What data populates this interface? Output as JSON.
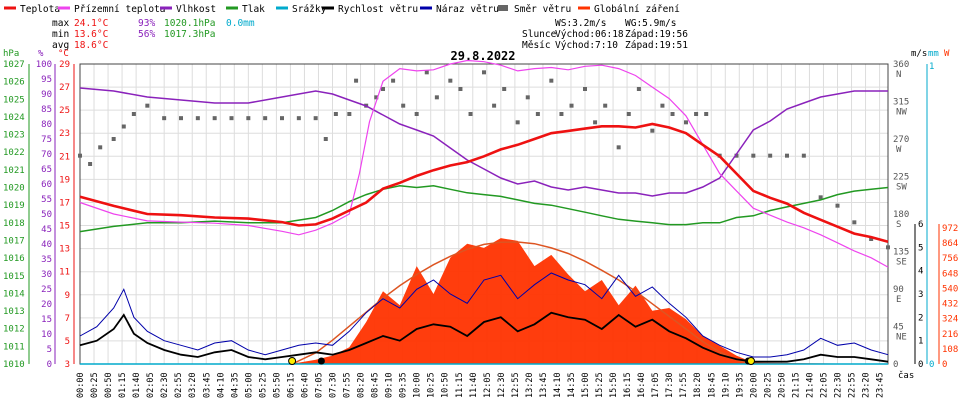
{
  "title": "29.8.2022",
  "legend": [
    {
      "label": "Teplota",
      "color": "#ee1111",
      "kind": "line"
    },
    {
      "label": "Přízemní teplota",
      "color": "#ee44ee",
      "kind": "line"
    },
    {
      "label": "Vlhkost",
      "color": "#8a22bb",
      "kind": "line"
    },
    {
      "label": "Tlak",
      "color": "#229922",
      "kind": "line"
    },
    {
      "label": "Srážky",
      "color": "#00aacc",
      "kind": "line"
    },
    {
      "label": "Rychlost větru",
      "color": "#000000",
      "kind": "line"
    },
    {
      "label": "Náraz větru",
      "color": "#0000aa",
      "kind": "line"
    },
    {
      "label": "Směr větru",
      "color": "#666666",
      "kind": "dot"
    },
    {
      "label": "Globální záření",
      "color": "#ff3300",
      "kind": "line"
    }
  ],
  "stats": {
    "max_label": "max",
    "max_temp": "24.1°C",
    "max_hum": "93%",
    "max_press": "1020.1hPa",
    "max_rain": "0.0mm",
    "min_label": "min",
    "min_temp": "13.6°C",
    "min_hum": "56%",
    "min_press": "1017.3hPa",
    "avg_label": "avg",
    "avg_temp": "18.6°C"
  },
  "info": {
    "ws": "WS:3.2m/s",
    "wg": "WG:5.9m/s",
    "sun_label": "Slunce",
    "sun_rise": "Východ:06:18",
    "sun_set": "Západ:19:56",
    "moon_label": "Měsíc",
    "moon_rise": "Východ:7:10",
    "moon_set": "Západ:19:51"
  },
  "axis_headers": {
    "hpa": "hPa",
    "pct": "%",
    "degc": "°C",
    "ms": "m/s",
    "mm": "mm",
    "w": "W",
    "time": "čas"
  },
  "colors": {
    "temp": "#ee1111",
    "ground": "#ee44ee",
    "humidity": "#8a22bb",
    "pressure": "#229922",
    "rain": "#00aacc",
    "wind": "#000000",
    "gust": "#0000aa",
    "dir": "#666666",
    "radiation": "#ff3300",
    "theoretical": "#dd5522",
    "grid": "#dddddd",
    "axis_press": "#229922",
    "axis_hum": "#8a22bb",
    "axis_temp": "#ee1111",
    "axis_wind": "#000000",
    "axis_rain": "#00aacc",
    "axis_rad": "#ff3300"
  },
  "chart_data": {
    "type": "line",
    "x_unit": "time",
    "x_ticks": [
      "00:00",
      "00:25",
      "00:50",
      "01:15",
      "01:40",
      "02:05",
      "02:30",
      "02:55",
      "03:20",
      "03:45",
      "04:10",
      "04:35",
      "05:00",
      "05:25",
      "05:50",
      "06:15",
      "06:40",
      "07:05",
      "07:30",
      "07:55",
      "08:20",
      "08:45",
      "09:10",
      "09:35",
      "10:00",
      "10:25",
      "10:50",
      "11:15",
      "11:40",
      "12:05",
      "12:30",
      "12:55",
      "13:20",
      "13:45",
      "14:10",
      "14:35",
      "15:00",
      "15:25",
      "15:50",
      "16:15",
      "16:40",
      "17:05",
      "17:30",
      "17:55",
      "18:20",
      "18:45",
      "19:10",
      "19:35",
      "20:00",
      "20:25",
      "20:50",
      "21:15",
      "21:40",
      "22:05",
      "22:30",
      "22:55",
      "23:20",
      "23:45"
    ],
    "axes": {
      "pressure": {
        "label": "hPa",
        "min": 1010,
        "max": 1027,
        "ticks": [
          1010,
          1011,
          1012,
          1013,
          1014,
          1015,
          1016,
          1017,
          1018,
          1019,
          1020,
          1021,
          1022,
          1023,
          1024,
          1025,
          1026,
          1027
        ]
      },
      "humidity": {
        "label": "%",
        "min": 0,
        "max": 100,
        "ticks": [
          0,
          5,
          10,
          15,
          20,
          25,
          30,
          35,
          40,
          45,
          50,
          55,
          60,
          65,
          70,
          75,
          80,
          85,
          90,
          95,
          100
        ]
      },
      "temperature": {
        "label": "°C",
        "min": 3,
        "max": 29,
        "ticks": [
          3,
          5,
          7,
          9,
          11,
          13,
          15,
          17,
          19,
          21,
          23,
          25,
          27,
          29
        ]
      },
      "wind_direction": {
        "ticks": [
          "360 N",
          "315 NW",
          "270 W",
          "225 SW",
          "180 S",
          "135 SE",
          "90 E",
          "45 NE",
          "0"
        ]
      },
      "wind_speed": {
        "label": "m/s",
        "min": 0,
        "max": 6,
        "ticks": [
          0,
          1,
          2,
          3,
          4,
          5,
          6
        ]
      },
      "rain": {
        "label": "mm",
        "ticks": [
          1,
          0
        ]
      },
      "radiation": {
        "label": "W",
        "min": 0,
        "max": 972,
        "ticks": [
          0,
          108,
          216,
          324,
          432,
          540,
          648,
          756,
          864,
          972
        ]
      }
    },
    "series": [
      {
        "name": "Teplota",
        "axis": "temperature",
        "x": [
          0,
          1,
          2,
          3,
          4,
          5,
          6,
          6.5,
          7,
          7.5,
          8,
          8.5,
          9,
          9.5,
          10,
          10.5,
          11,
          11.5,
          12,
          12.5,
          13,
          13.5,
          14,
          14.5,
          15,
          15.5,
          16,
          16.5,
          17,
          17.5,
          18,
          18.5,
          19,
          19.5,
          20,
          20.5,
          21,
          21.5,
          22,
          22.5,
          23,
          23.5,
          24
        ],
        "y": [
          17.5,
          16.7,
          16.0,
          15.9,
          15.7,
          15.6,
          15.3,
          15.0,
          15.1,
          15.6,
          16.3,
          17.0,
          18.2,
          18.7,
          19.3,
          19.8,
          20.2,
          20.5,
          21.0,
          21.6,
          22.0,
          22.5,
          23.0,
          23.2,
          23.4,
          23.6,
          23.6,
          23.5,
          23.8,
          23.5,
          23.0,
          22.0,
          21.0,
          19.5,
          18.0,
          17.4,
          16.9,
          16.1,
          15.5,
          14.9,
          14.3,
          14.0,
          13.6
        ]
      },
      {
        "name": "Přízemní teplota",
        "axis": "temperature",
        "x": [
          0,
          1,
          2,
          3,
          4,
          5,
          6,
          6.5,
          7,
          7.5,
          8,
          8.3,
          8.6,
          9,
          9.5,
          10,
          10.5,
          11,
          11.5,
          12,
          12.5,
          13,
          13.5,
          14,
          14.5,
          15,
          15.5,
          16,
          16.5,
          17,
          17.5,
          18,
          18.3,
          18.7,
          19,
          19.5,
          20,
          20.5,
          21,
          21.5,
          22,
          22.5,
          23,
          23.5,
          24
        ],
        "y": [
          17.0,
          16.0,
          15.4,
          15.3,
          15.2,
          15.0,
          14.5,
          14.2,
          14.6,
          15.2,
          16.0,
          19.5,
          24.0,
          27.5,
          28.6,
          28.4,
          28.5,
          29.0,
          29.3,
          29.2,
          28.9,
          28.4,
          28.6,
          28.7,
          28.5,
          28.8,
          28.9,
          28.6,
          28.0,
          27.0,
          26.0,
          24.5,
          23.0,
          21.0,
          19.5,
          18.0,
          16.5,
          15.9,
          15.3,
          14.8,
          14.2,
          13.5,
          12.8,
          12.2,
          11.4
        ]
      },
      {
        "name": "Vlhkost",
        "axis": "humidity",
        "x": [
          0,
          1,
          2,
          3,
          4,
          5,
          6,
          6.5,
          7,
          7.5,
          8,
          8.5,
          9,
          9.5,
          10,
          10.5,
          11,
          11.5,
          12,
          12.5,
          13,
          13.5,
          14,
          14.5,
          15,
          15.5,
          16,
          16.5,
          17,
          17.5,
          18,
          18.5,
          19,
          19.5,
          20,
          20.5,
          21,
          21.5,
          22,
          22.5,
          23,
          23.5,
          24
        ],
        "y": [
          92,
          91,
          89,
          88,
          87,
          87,
          89,
          90,
          91,
          90,
          88,
          86,
          83,
          80,
          78,
          76,
          72,
          68,
          65,
          62,
          60,
          61,
          59,
          58,
          59,
          58,
          57,
          57,
          56,
          57,
          57,
          59,
          62,
          70,
          78,
          81,
          85,
          87,
          89,
          90,
          91,
          91,
          91
        ]
      },
      {
        "name": "Tlak",
        "axis": "pressure",
        "x": [
          0,
          1,
          2,
          3,
          4,
          5,
          6,
          7,
          7.5,
          8,
          8.5,
          9,
          9.5,
          10,
          10.5,
          11,
          11.5,
          12,
          12.5,
          13,
          13.5,
          14,
          14.5,
          15,
          15.5,
          16,
          16.5,
          17,
          17.5,
          18,
          18.5,
          19,
          19.5,
          20,
          20.5,
          21,
          21.5,
          22,
          22.5,
          23,
          23.5,
          24
        ],
        "y": [
          1017.5,
          1017.8,
          1018.0,
          1018.0,
          1018.1,
          1018.0,
          1018.0,
          1018.3,
          1018.7,
          1019.2,
          1019.6,
          1019.9,
          1020.1,
          1020.0,
          1020.1,
          1019.9,
          1019.7,
          1019.6,
          1019.5,
          1019.3,
          1019.1,
          1019.0,
          1018.8,
          1018.6,
          1018.4,
          1018.2,
          1018.1,
          1018.0,
          1017.9,
          1017.9,
          1018.0,
          1018.0,
          1018.3,
          1018.4,
          1018.7,
          1018.9,
          1019.1,
          1019.3,
          1019.6,
          1019.8,
          1019.9,
          1020.0
        ]
      },
      {
        "name": "Srážky",
        "axis": "rain",
        "x": [
          0,
          24
        ],
        "y": [
          0,
          0
        ]
      },
      {
        "name": "Rychlost větru",
        "axis": "wind_speed",
        "x": [
          0,
          0.5,
          1,
          1.3,
          1.6,
          2,
          2.5,
          3,
          3.5,
          4,
          4.5,
          5,
          5.5,
          6,
          6.5,
          7,
          7.5,
          8,
          8.5,
          9,
          9.5,
          10,
          10.5,
          11,
          11.5,
          12,
          12.5,
          13,
          13.5,
          14,
          14.5,
          15,
          15.5,
          16,
          16.5,
          17,
          17.5,
          18,
          18.5,
          19,
          19.5,
          20,
          20.5,
          21,
          21.5,
          22,
          22.5,
          23,
          23.5,
          24
        ],
        "y": [
          0.8,
          1.0,
          1.5,
          2.1,
          1.3,
          0.9,
          0.6,
          0.4,
          0.3,
          0.5,
          0.6,
          0.3,
          0.2,
          0.3,
          0.4,
          0.5,
          0.4,
          0.6,
          0.9,
          1.2,
          1.0,
          1.5,
          1.7,
          1.6,
          1.2,
          1.8,
          2.0,
          1.4,
          1.7,
          2.2,
          2.0,
          1.9,
          1.5,
          2.1,
          1.6,
          1.9,
          1.4,
          1.1,
          0.7,
          0.4,
          0.2,
          0.1,
          0.1,
          0.1,
          0.2,
          0.4,
          0.3,
          0.3,
          0.2,
          0.1
        ]
      },
      {
        "name": "Náraz větru",
        "axis": "wind_speed",
        "x": [
          0,
          0.5,
          1,
          1.3,
          1.6,
          2,
          2.5,
          3,
          3.5,
          4,
          4.5,
          5,
          5.5,
          6,
          6.5,
          7,
          7.5,
          8,
          8.5,
          9,
          9.5,
          10,
          10.5,
          11,
          11.5,
          12,
          12.5,
          13,
          13.5,
          14,
          14.5,
          15,
          15.5,
          16,
          16.5,
          17,
          17.5,
          18,
          18.5,
          19,
          19.5,
          20,
          20.5,
          21,
          21.5,
          22,
          22.5,
          23,
          23.5,
          24
        ],
        "y": [
          1.2,
          1.6,
          2.4,
          3.2,
          2.0,
          1.4,
          1.0,
          0.8,
          0.6,
          0.9,
          1.0,
          0.6,
          0.4,
          0.6,
          0.8,
          0.9,
          0.8,
          1.4,
          2.2,
          2.8,
          2.4,
          3.2,
          3.6,
          3.0,
          2.6,
          3.6,
          3.8,
          2.8,
          3.4,
          3.9,
          3.6,
          3.4,
          2.8,
          3.8,
          2.9,
          3.3,
          2.6,
          2.0,
          1.2,
          0.8,
          0.5,
          0.3,
          0.3,
          0.4,
          0.6,
          1.1,
          0.8,
          0.9,
          0.6,
          0.4
        ]
      },
      {
        "name": "Směr větru",
        "axis": "wind_direction",
        "kind": "scatter",
        "x": [
          0,
          0.3,
          0.6,
          1,
          1.3,
          1.6,
          2,
          2.5,
          3,
          3.5,
          4,
          4.5,
          5,
          5.5,
          6,
          6.5,
          7,
          7.3,
          7.6,
          8,
          8.2,
          8.5,
          8.8,
          9,
          9.3,
          9.6,
          10,
          10.3,
          10.6,
          11,
          11.3,
          11.6,
          12,
          12.3,
          12.6,
          13,
          13.3,
          13.6,
          14,
          14.3,
          14.6,
          15,
          15.3,
          15.6,
          16,
          16.3,
          16.6,
          17,
          17.3,
          17.6,
          18,
          18.3,
          18.6,
          19,
          19.5,
          20,
          20.5,
          21,
          21.5,
          22,
          22.5,
          23,
          23.5,
          24
        ],
        "y": [
          250,
          240,
          260,
          270,
          285,
          300,
          310,
          295,
          295,
          295,
          295,
          295,
          295,
          295,
          295,
          295,
          295,
          270,
          300,
          300,
          340,
          310,
          320,
          330,
          340,
          310,
          300,
          350,
          320,
          340,
          330,
          300,
          350,
          310,
          330,
          290,
          320,
          300,
          340,
          300,
          310,
          330,
          290,
          310,
          260,
          300,
          330,
          280,
          310,
          300,
          290,
          300,
          300,
          250,
          250,
          250,
          250,
          250,
          250,
          200,
          190,
          170,
          150,
          140
        ]
      },
      {
        "name": "Globální záření",
        "axis": "radiation",
        "x": [
          0,
          6,
          6.5,
          7,
          7.5,
          8,
          8.5,
          9,
          9.5,
          10,
          10.5,
          11,
          11.5,
          12,
          12.5,
          13,
          13.5,
          14,
          14.5,
          15,
          15.5,
          16,
          16.5,
          17,
          17.5,
          18,
          18.5,
          19,
          19.5,
          20,
          24
        ],
        "y": [
          0,
          0,
          10,
          30,
          60,
          120,
          300,
          520,
          420,
          700,
          500,
          760,
          860,
          830,
          900,
          880,
          700,
          780,
          640,
          520,
          600,
          420,
          560,
          380,
          400,
          320,
          200,
          130,
          60,
          10,
          0
        ]
      },
      {
        "name": "Teoretické záření",
        "axis": "radiation",
        "x": [
          6.3,
          7,
          7.5,
          8,
          8.5,
          9,
          9.5,
          10,
          10.5,
          11,
          11.5,
          12,
          12.5,
          13,
          13.5,
          14,
          14.5,
          15,
          15.5,
          16,
          16.5,
          17,
          17.5,
          18,
          18.5,
          19,
          19.5,
          19.95
        ],
        "y": [
          0,
          80,
          170,
          270,
          370,
          470,
          560,
          640,
          710,
          770,
          820,
          855,
          870,
          872,
          860,
          830,
          790,
          735,
          670,
          600,
          520,
          430,
          340,
          250,
          160,
          85,
          30,
          0
        ]
      }
    ]
  }
}
